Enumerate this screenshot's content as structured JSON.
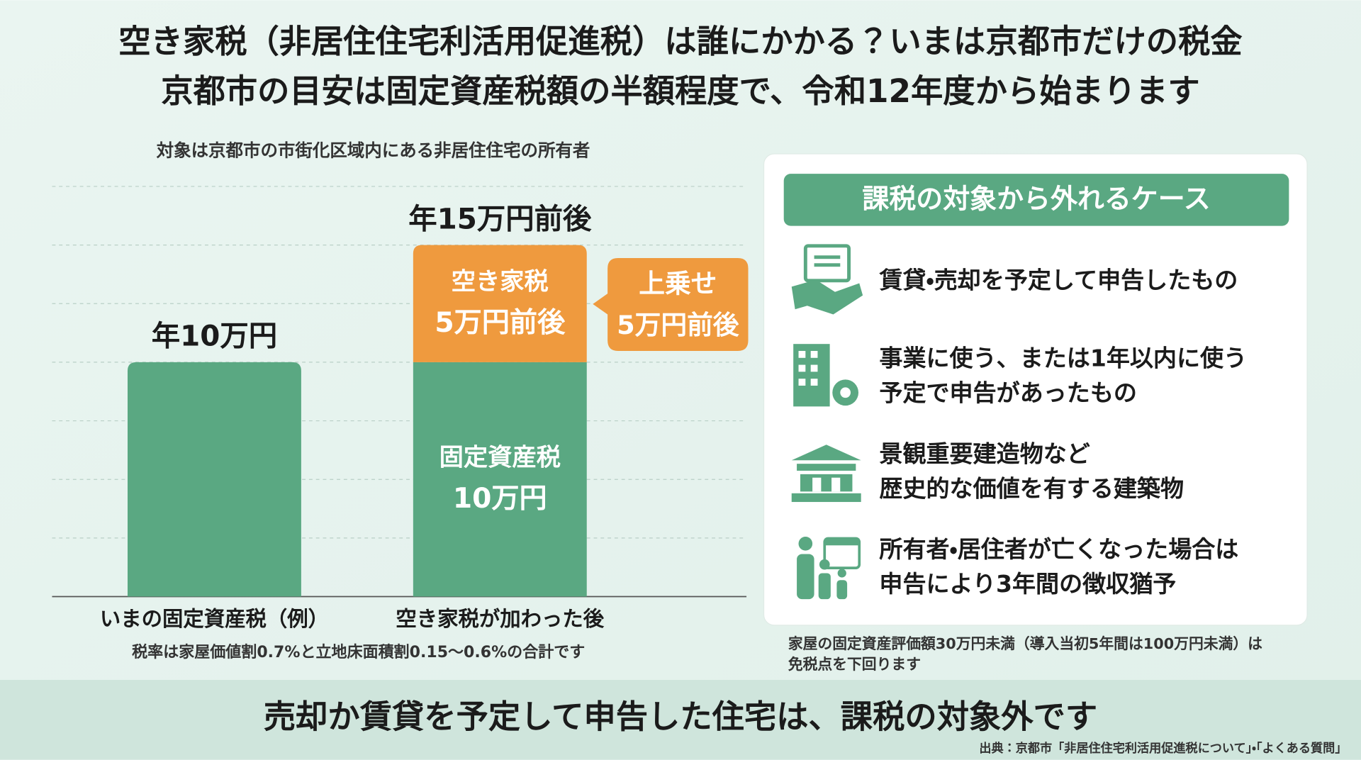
{
  "title": [
    "空き家税（非居住住宅利活用促進税）は誰にかかる？いまは京都市だけの税金",
    "京都市の目安は固定資産税額の半額程度で、令和12年度から始まります"
  ],
  "chart_data": {
    "type": "bar",
    "stacked": true,
    "subtitle": "対象は京都市の市街化区域内にある非居住住宅の所有者",
    "categories": [
      "いまの固定資産税（例）",
      "空き家税が加わった後"
    ],
    "series": [
      {
        "name": "固定資産税",
        "color": "#5aa882",
        "values": [
          10,
          10
        ],
        "value_labels": [
          null,
          "10万円"
        ]
      },
      {
        "name": "空き家税",
        "color": "#ef9a3e",
        "values": [
          null,
          5
        ],
        "value_labels": [
          null,
          "5万円前後"
        ]
      }
    ],
    "total_labels": [
      "年10万円",
      "年15万円前後"
    ],
    "callout": [
      "上乗せ",
      "5万円前後"
    ],
    "note": "税率は家屋価値割0.7%と立地床面積割0.15〜0.6%の合計です",
    "ylim": [
      0,
      20
    ],
    "yticks": [
      0,
      2.5,
      5,
      7.5,
      10,
      12.5,
      15,
      17.5
    ],
    "grid": true
  },
  "panel": {
    "title": "課税の対象から外れるケース",
    "items": [
      [
        "賃貸・売却を予定して申告したもの"
      ],
      [
        "事業に使う、または1年以内に使う",
        "予定で申告があったもの"
      ],
      [
        "景観重要建造物など",
        "歴史的な価値を有する建築物"
      ],
      [
        "所有者・居住者が亡くなった場合は",
        "申告により3年間の徴収猶予"
      ]
    ],
    "note": [
      "家屋の固定資産評価額30万円未満（導入当初5年間は100万円未満）は",
      "免税点を下回ります"
    ]
  },
  "footer": {
    "message": "売却か賃貸を予定して申告した住宅は、課税の対象外です",
    "source": "出典：京都市「非居住住宅利活用促進税について」・「よくある質問」"
  }
}
